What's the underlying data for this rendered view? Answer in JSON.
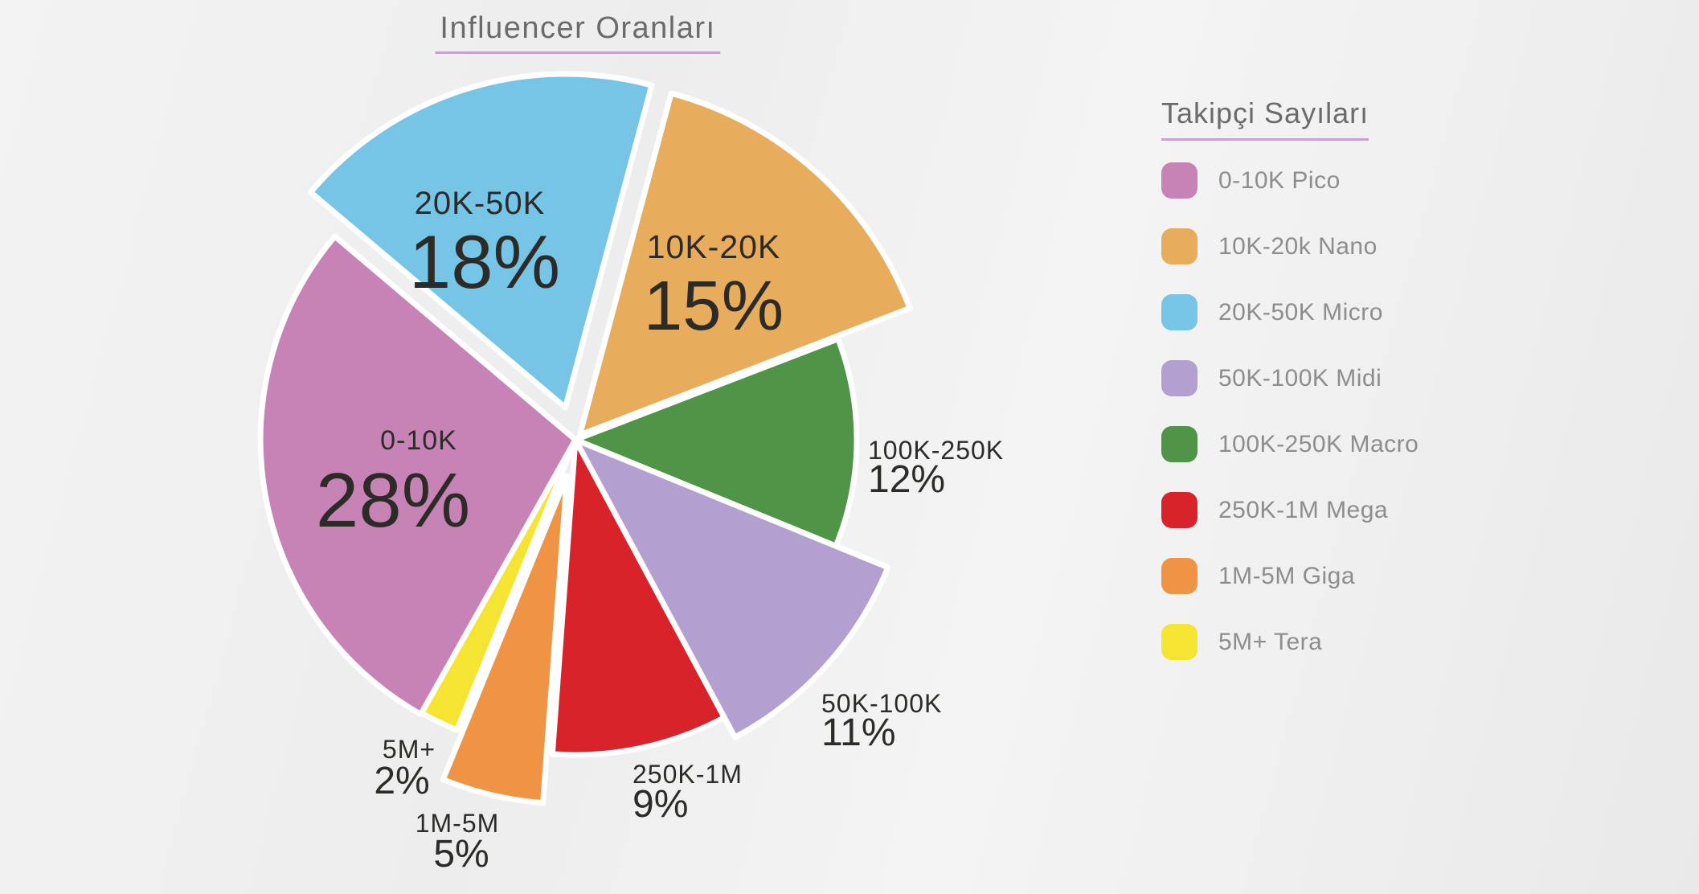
{
  "title": "Influencer Oranları",
  "theme": {
    "underline_accent": "#c9a2cb",
    "heading_text": "#6b6b6b",
    "legend_text": "#8d8d8d",
    "slice_label_text": "#2d2b28",
    "slice_border": "#ffffff",
    "background": "#eeeeee"
  },
  "legend": {
    "title": "Takipçi Sayıları",
    "items": [
      {
        "label": "0-10K Pico",
        "color": "#c783b5"
      },
      {
        "label": "10K-20k Nano",
        "color": "#e7ac5c"
      },
      {
        "label": "20K-50K Micro",
        "color": "#76c4e6"
      },
      {
        "label": "50K-100K Midi",
        "color": "#b4a0d0"
      },
      {
        "label": "100K-250K Macro",
        "color": "#4f9447"
      },
      {
        "label": "250K-1M Mega",
        "color": "#d8232a"
      },
      {
        "label": "1M-5M Giga",
        "color": "#ef9444"
      },
      {
        "label": "5M+ Tera",
        "color": "#f5e432"
      }
    ]
  },
  "chart_data": {
    "type": "pie",
    "title": "Influencer Oranları",
    "legend_title": "Takipçi Sayıları",
    "legend_position": "right",
    "unit": "%",
    "start_angle_deg_cw_from_12": 15,
    "slices": [
      {
        "label": "0-10K",
        "tier": "Pico",
        "value": 28,
        "color": "#c783b5"
      },
      {
        "label": "10K-20K",
        "tier": "Nano",
        "value": 15,
        "color": "#e7ac5c"
      },
      {
        "label": "20K-50K",
        "tier": "Micro",
        "value": 18,
        "color": "#76c4e6"
      },
      {
        "label": "50K-100K",
        "tier": "Midi",
        "value": 11,
        "color": "#b4a0d0"
      },
      {
        "label": "100K-250K",
        "tier": "Macro",
        "value": 12,
        "color": "#4f9447"
      },
      {
        "label": "250K-1M",
        "tier": "Mega",
        "value": 9,
        "color": "#d8232a"
      },
      {
        "label": "1M-5M",
        "tier": "Giga",
        "value": 5,
        "color": "#ef9444"
      },
      {
        "label": "5M+",
        "tier": "Tera",
        "value": 2,
        "color": "#f5e432"
      }
    ]
  }
}
